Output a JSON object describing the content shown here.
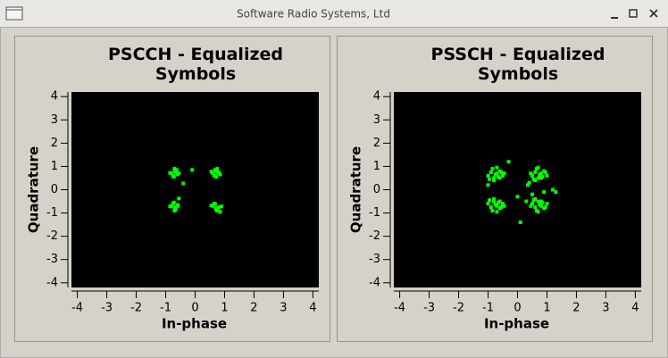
{
  "window": {
    "title": "Software Radio Systems, Ltd"
  },
  "chart_data": [
    {
      "type": "scatter",
      "title": "PSCCH - Equalized Symbols",
      "xlabel": "In-phase",
      "ylabel": "Quadrature",
      "color": "#00ff00",
      "xlim": [
        -4.2,
        4.2
      ],
      "ylim": [
        -4.2,
        4.2
      ],
      "xticks": [
        -4,
        -3,
        -2,
        -1,
        0,
        1,
        2,
        3,
        4
      ],
      "yticks": [
        -4,
        -3,
        -2,
        -1,
        0,
        1,
        2,
        3,
        4
      ],
      "x": [
        -0.8,
        -0.7,
        -0.6,
        -0.75,
        -0.65,
        -0.85,
        -0.55,
        -0.7,
        -0.72,
        -0.62,
        0.6,
        0.7,
        0.8,
        0.65,
        0.75,
        0.85,
        0.55,
        0.72,
        0.68,
        0.78,
        -0.8,
        -0.7,
        -0.6,
        -0.75,
        -0.65,
        -0.85,
        -0.58,
        -0.7,
        -0.72,
        -0.66,
        0.6,
        0.7,
        0.8,
        0.65,
        0.75,
        0.9,
        0.55,
        0.72,
        0.68,
        0.85,
        -0.1,
        -0.4,
        -0.55
      ],
      "y": [
        0.7,
        0.8,
        0.65,
        0.6,
        0.75,
        0.72,
        0.7,
        0.9,
        0.55,
        0.85,
        0.7,
        0.8,
        0.75,
        0.6,
        0.9,
        0.65,
        0.78,
        0.55,
        0.85,
        0.72,
        -0.7,
        -0.8,
        -0.65,
        -0.6,
        -0.75,
        -0.72,
        -0.7,
        -0.9,
        -0.55,
        -0.85,
        -0.7,
        -0.8,
        -0.75,
        -0.6,
        -0.9,
        -0.72,
        -0.68,
        -0.85,
        -0.62,
        -0.95,
        0.85,
        0.27,
        -0.38
      ]
    },
    {
      "type": "scatter",
      "title": "PSSCH - Equalized Symbols",
      "xlabel": "In-phase",
      "ylabel": "Quadrature",
      "color": "#00ff00",
      "xlim": [
        -4.2,
        4.2
      ],
      "ylim": [
        -4.2,
        4.2
      ],
      "xticks": [
        -4,
        -3,
        -2,
        -1,
        0,
        1,
        2,
        3,
        4
      ],
      "yticks": [
        -4,
        -3,
        -2,
        -1,
        0,
        1,
        2,
        3,
        4
      ],
      "x": [
        -1.0,
        -0.9,
        -0.8,
        -0.7,
        -0.6,
        -0.5,
        -0.95,
        -0.85,
        -0.75,
        -0.65,
        -0.55,
        -0.7,
        -0.8,
        -0.6,
        -0.45,
        0.5,
        0.6,
        0.7,
        0.8,
        0.9,
        1.0,
        0.55,
        0.65,
        0.75,
        0.85,
        0.95,
        0.7,
        0.6,
        0.8,
        0.45,
        -1.0,
        -0.9,
        -0.8,
        -0.7,
        -0.6,
        -0.5,
        -0.95,
        -0.85,
        -0.75,
        -0.65,
        -0.55,
        -0.7,
        -0.8,
        -0.6,
        -0.45,
        0.5,
        0.6,
        0.7,
        0.8,
        0.9,
        1.0,
        0.55,
        0.65,
        0.75,
        0.85,
        0.95,
        0.7,
        0.6,
        0.8,
        0.45,
        0.4,
        0.5,
        1.2,
        0.1,
        -1.0,
        0.3,
        1.3,
        0.0,
        0.9,
        -0.3,
        0.35
      ],
      "y": [
        0.6,
        0.75,
        0.5,
        0.7,
        0.8,
        0.6,
        0.45,
        0.9,
        0.65,
        0.55,
        0.75,
        0.95,
        0.4,
        0.5,
        0.7,
        0.6,
        0.75,
        0.5,
        0.7,
        0.8,
        0.6,
        0.45,
        0.9,
        0.65,
        0.55,
        0.75,
        0.95,
        0.4,
        0.5,
        0.7,
        -0.6,
        -0.75,
        -0.5,
        -0.7,
        -0.8,
        -0.6,
        -0.45,
        -0.9,
        -0.65,
        -0.55,
        -0.75,
        -0.95,
        -0.4,
        -0.5,
        -0.7,
        -0.6,
        -0.75,
        -0.5,
        -0.7,
        -0.8,
        -0.6,
        -0.45,
        -0.9,
        -0.65,
        -0.55,
        -0.75,
        -0.95,
        -0.4,
        -0.5,
        -0.7,
        0.3,
        -0.2,
        0.0,
        -1.4,
        0.2,
        -0.5,
        -0.1,
        -0.3,
        -0.1,
        1.2,
        0.2
      ]
    }
  ]
}
